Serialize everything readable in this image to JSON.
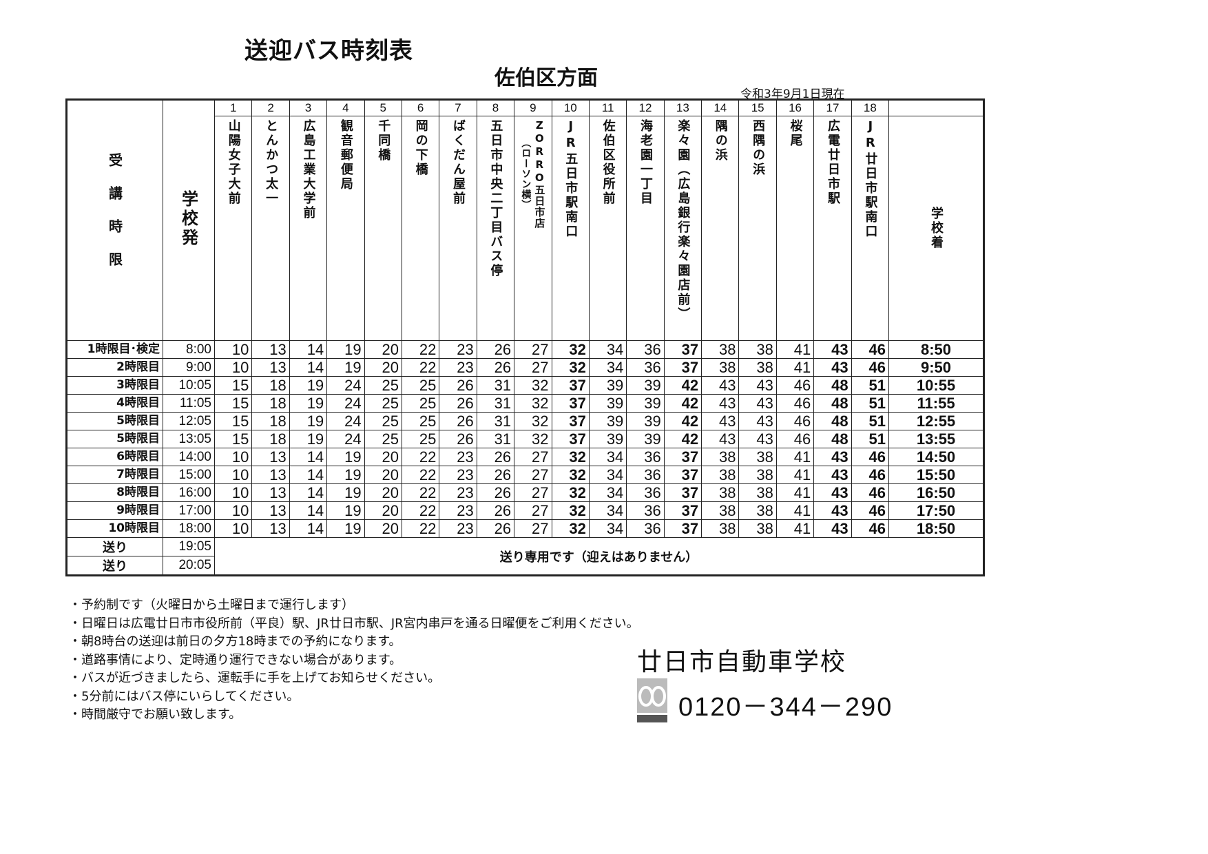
{
  "header": {
    "title": "送迎バス時刻表",
    "subtitle": "佐伯区方面",
    "as_of": "令和3年9月1日現在"
  },
  "table": {
    "period_header": "受講時限",
    "depart_header": "学校発",
    "arrive_header": "学校着",
    "stops": [
      {
        "no": "1",
        "name": "山陽女子大前"
      },
      {
        "no": "2",
        "name": "とんかつ太一"
      },
      {
        "no": "3",
        "name": "広島工業大学前"
      },
      {
        "no": "4",
        "name": "観音郵便局"
      },
      {
        "no": "5",
        "name": "千同橋"
      },
      {
        "no": "6",
        "name": "岡の下橋"
      },
      {
        "no": "7",
        "name": "ばくだん屋前"
      },
      {
        "no": "8",
        "name": "五日市中央二丁目バス停"
      },
      {
        "no": "9",
        "name": "ZORRO五日市店",
        "sub": "（ローソン横）"
      },
      {
        "no": "10",
        "name": "JR五日市駅南口"
      },
      {
        "no": "11",
        "name": "佐伯区役所前"
      },
      {
        "no": "12",
        "name": "海老園一丁目"
      },
      {
        "no": "13",
        "name": "楽々園（広島銀行楽々園店前）"
      },
      {
        "no": "14",
        "name": "隅の浜"
      },
      {
        "no": "15",
        "name": "西隅の浜"
      },
      {
        "no": "16",
        "name": "桜尾"
      },
      {
        "no": "17",
        "name": "広電廿日市駅"
      },
      {
        "no": "18",
        "name": "JR廿日市駅南口"
      }
    ],
    "bold_stop_columns": [
      10,
      13,
      17,
      18
    ],
    "rows": [
      {
        "period": "1時限目･検定",
        "depart": "8:00",
        "times": [
          "10",
          "13",
          "14",
          "19",
          "20",
          "22",
          "23",
          "26",
          "27",
          "32",
          "34",
          "36",
          "37",
          "38",
          "38",
          "41",
          "43",
          "46"
        ],
        "arrive": "8:50"
      },
      {
        "period": "2時限目",
        "depart": "9:00",
        "times": [
          "10",
          "13",
          "14",
          "19",
          "20",
          "22",
          "23",
          "26",
          "27",
          "32",
          "34",
          "36",
          "37",
          "38",
          "38",
          "41",
          "43",
          "46"
        ],
        "arrive": "9:50"
      },
      {
        "period": "3時限目",
        "depart": "10:05",
        "times": [
          "15",
          "18",
          "19",
          "24",
          "25",
          "25",
          "26",
          "31",
          "32",
          "37",
          "39",
          "39",
          "42",
          "43",
          "43",
          "46",
          "48",
          "51"
        ],
        "arrive": "10:55"
      },
      {
        "period": "4時限目",
        "depart": "11:05",
        "times": [
          "15",
          "18",
          "19",
          "24",
          "25",
          "25",
          "26",
          "31",
          "32",
          "37",
          "39",
          "39",
          "42",
          "43",
          "43",
          "46",
          "48",
          "51"
        ],
        "arrive": "11:55"
      },
      {
        "period": "5時限目",
        "depart": "12:05",
        "times": [
          "15",
          "18",
          "19",
          "24",
          "25",
          "25",
          "26",
          "31",
          "32",
          "37",
          "39",
          "39",
          "42",
          "43",
          "43",
          "46",
          "48",
          "51"
        ],
        "arrive": "12:55"
      },
      {
        "period": "5時限目",
        "depart": "13:05",
        "times": [
          "15",
          "18",
          "19",
          "24",
          "25",
          "25",
          "26",
          "31",
          "32",
          "37",
          "39",
          "39",
          "42",
          "43",
          "43",
          "46",
          "48",
          "51"
        ],
        "arrive": "13:55"
      },
      {
        "period": "6時限目",
        "depart": "14:00",
        "times": [
          "10",
          "13",
          "14",
          "19",
          "20",
          "22",
          "23",
          "26",
          "27",
          "32",
          "34",
          "36",
          "37",
          "38",
          "38",
          "41",
          "43",
          "46"
        ],
        "arrive": "14:50"
      },
      {
        "period": "7時限目",
        "depart": "15:00",
        "times": [
          "10",
          "13",
          "14",
          "19",
          "20",
          "22",
          "23",
          "26",
          "27",
          "32",
          "34",
          "36",
          "37",
          "38",
          "38",
          "41",
          "43",
          "46"
        ],
        "arrive": "15:50"
      },
      {
        "period": "8時限目",
        "depart": "16:00",
        "times": [
          "10",
          "13",
          "14",
          "19",
          "20",
          "22",
          "23",
          "26",
          "27",
          "32",
          "34",
          "36",
          "37",
          "38",
          "38",
          "41",
          "43",
          "46"
        ],
        "arrive": "16:50"
      },
      {
        "period": "9時限目",
        "depart": "17:00",
        "times": [
          "10",
          "13",
          "14",
          "19",
          "20",
          "22",
          "23",
          "26",
          "27",
          "32",
          "34",
          "36",
          "37",
          "38",
          "38",
          "41",
          "43",
          "46"
        ],
        "arrive": "17:50"
      },
      {
        "period": "10時限目",
        "depart": "18:00",
        "times": [
          "10",
          "13",
          "14",
          "19",
          "20",
          "22",
          "23",
          "26",
          "27",
          "32",
          "34",
          "36",
          "37",
          "38",
          "38",
          "41",
          "43",
          "46"
        ],
        "arrive": "18:50"
      }
    ],
    "send_rows": [
      {
        "period": "送り",
        "depart": "19:05"
      },
      {
        "period": "送り",
        "depart": "20:05"
      }
    ],
    "send_note": "送り専用です（迎えはありません）"
  },
  "notes": [
    "・予約制です（火曜日から土曜日まで運行します）",
    "・日曜日は広電廿日市市役所前（平良）駅、JR廿日市駅、JR宮内串戸を通る日曜便をご利用ください。",
    "・朝8時台の送迎は前日の夕方18時までの予約になります。",
    "・道路事情により、定時通り運行できない場合があります。",
    "・バスが近づきましたら、運転手に手を上げてお知らせください。",
    "・5分前にはバス停にいらしてください。",
    "・時間厳守でお願い致します。"
  ],
  "footer": {
    "school_name": "廿日市自動車学校",
    "phone": "0120－344－290",
    "logo_icon": "free-dial-logo"
  }
}
